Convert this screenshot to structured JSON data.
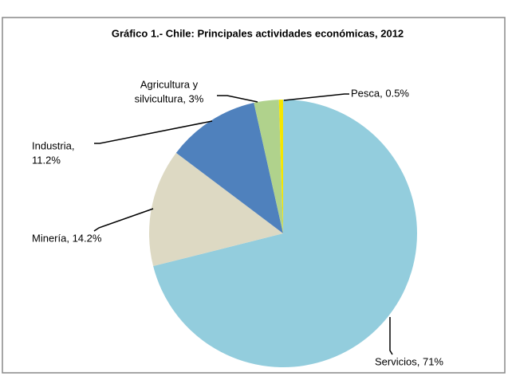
{
  "chart_data": {
    "type": "pie",
    "title": "Gráfico 1.- Chile: Principales actividades económicas, 2012",
    "values": [
      71,
      14.2,
      11.2,
      3,
      0.5
    ],
    "value_labels": [
      [
        "Servicios, 71%"
      ],
      [
        "Minería, 14.2%"
      ],
      [
        "Industria,",
        "11.2%"
      ],
      [
        "Agricultura y",
        "silvicultura, 3%"
      ],
      [
        "Pesca, 0.5%"
      ]
    ],
    "colors": [
      "#93cddd",
      "#ddd9c3",
      "#4f81bd",
      "#b0d28c",
      "#f5e600"
    ]
  }
}
